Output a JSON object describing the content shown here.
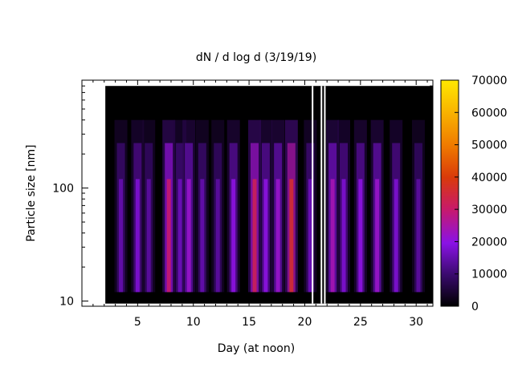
{
  "chart_data": {
    "type": "heatmap",
    "title": "dN / d log d (3/19/19)",
    "xlabel": "Day (at noon)",
    "ylabel": "Particle size [nm]",
    "xlim": [
      0,
      31.5
    ],
    "ylim": [
      9,
      900
    ],
    "yscale": "log",
    "x_ticks": [
      5,
      10,
      15,
      20,
      25,
      30
    ],
    "y_ticks": [
      10,
      100
    ],
    "data_x_range": [
      2.1,
      31.5
    ],
    "data_y_range": [
      9.5,
      800
    ],
    "colorbar": {
      "range": [
        0,
        70000
      ],
      "ticks": [
        0,
        10000,
        20000,
        30000,
        40000,
        50000,
        60000,
        70000
      ],
      "palette": "black-purple-red-orange-yellow"
    },
    "gap_days": [
      20.7,
      21.5,
      21.8
    ],
    "peak_day_columns": [
      {
        "day": 3.5,
        "value": 15000
      },
      {
        "day": 5.0,
        "value": 18000
      },
      {
        "day": 6.0,
        "value": 14000
      },
      {
        "day": 7.8,
        "value": 30000
      },
      {
        "day": 8.8,
        "value": 16000
      },
      {
        "day": 9.6,
        "value": 22000
      },
      {
        "day": 10.8,
        "value": 15000
      },
      {
        "day": 12.2,
        "value": 14000
      },
      {
        "day": 13.6,
        "value": 20000
      },
      {
        "day": 15.5,
        "value": 32000
      },
      {
        "day": 16.5,
        "value": 20000
      },
      {
        "day": 17.6,
        "value": 22000
      },
      {
        "day": 18.8,
        "value": 36000
      },
      {
        "day": 20.5,
        "value": 16000
      },
      {
        "day": 22.5,
        "value": 24000
      },
      {
        "day": 23.5,
        "value": 18000
      },
      {
        "day": 25.0,
        "value": 20000
      },
      {
        "day": 26.5,
        "value": 22000
      },
      {
        "day": 28.2,
        "value": 18000
      },
      {
        "day": 30.2,
        "value": 14000
      }
    ]
  }
}
